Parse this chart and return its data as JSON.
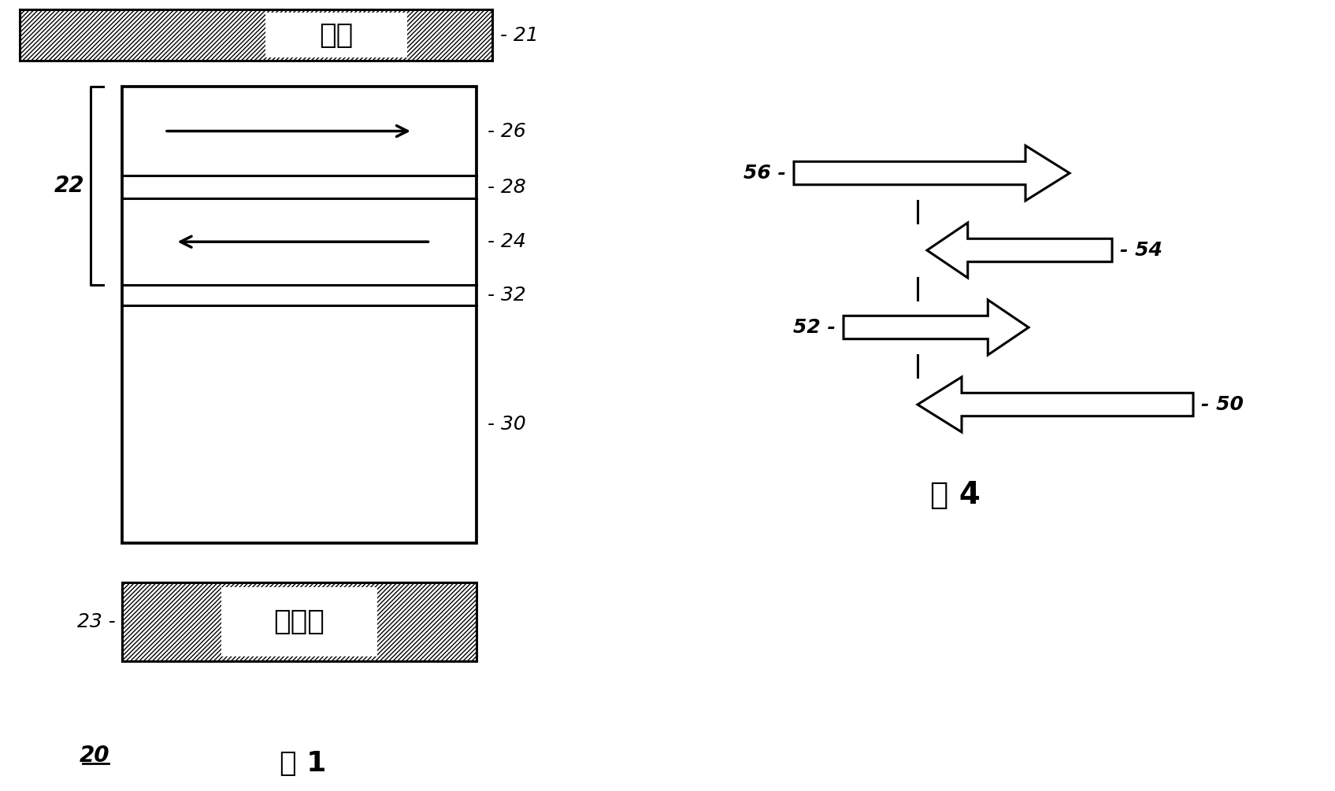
{
  "bg_color": "#ffffff",
  "fig_width": 16.95,
  "fig_height": 10.05,
  "bit_line_text": "位线",
  "bit_line_label": "21",
  "digit_line_text": "数字线",
  "digit_line_label": "23",
  "labels": {
    "26": "26",
    "28": "28",
    "24": "24",
    "32": "32",
    "30": "30",
    "22": "22",
    "20": "20",
    "21": "21",
    "23": "23",
    "56": "56",
    "54": "54",
    "52": "52",
    "50": "50"
  },
  "fig1_label": "图 1",
  "fig4_label": "图 4"
}
